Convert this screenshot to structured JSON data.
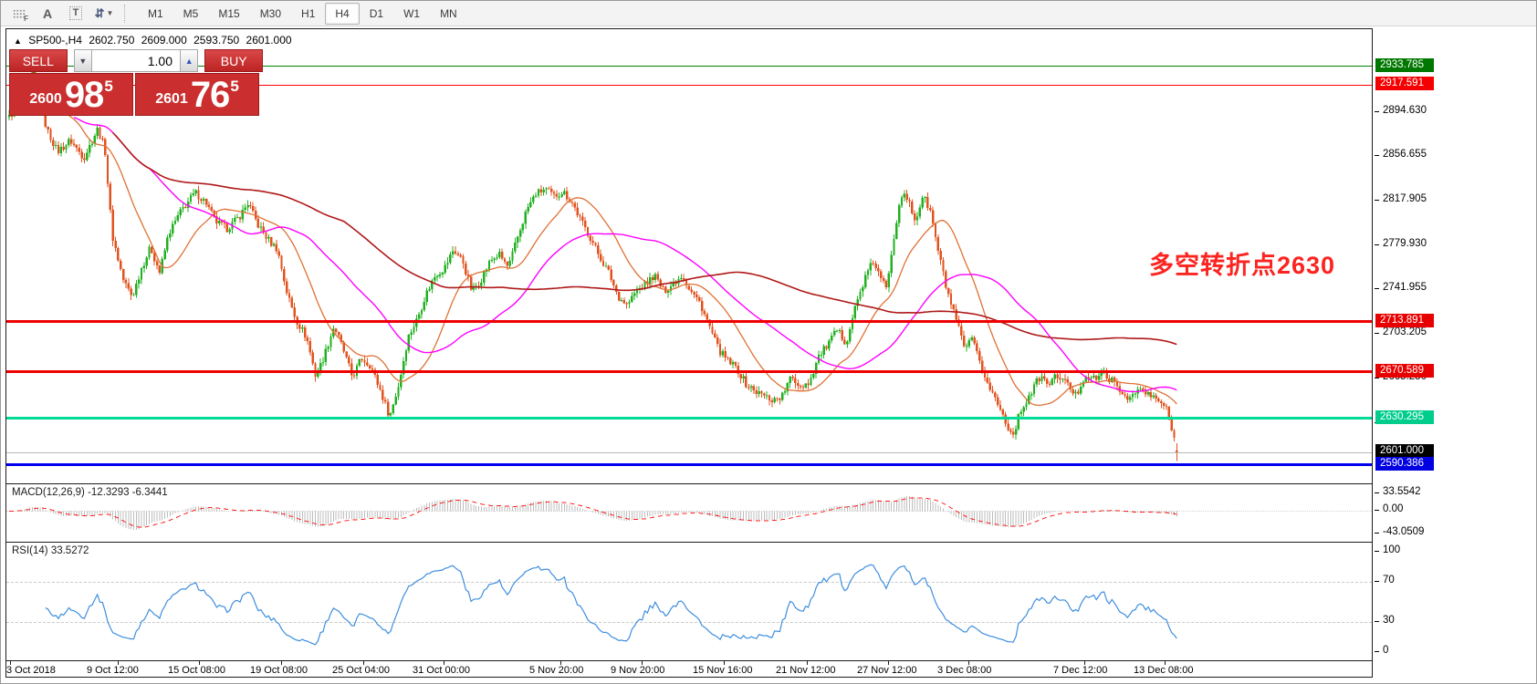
{
  "toolbar": {
    "icons": [
      "dotted-grid-f",
      "text-label-a",
      "text-box-t",
      "arrow-objects"
    ],
    "timeframes": [
      {
        "label": "M1",
        "active": false
      },
      {
        "label": "M5",
        "active": false
      },
      {
        "label": "M15",
        "active": false
      },
      {
        "label": "M30",
        "active": false
      },
      {
        "label": "H1",
        "active": false
      },
      {
        "label": "H4",
        "active": true
      },
      {
        "label": "D1",
        "active": false
      },
      {
        "label": "W1",
        "active": false
      },
      {
        "label": "MN",
        "active": false
      }
    ]
  },
  "header": {
    "trend_arrow": "▲",
    "symbol": "SP500-,H4",
    "open": "2602.750",
    "high": "2609.000",
    "low": "2593.750",
    "close": "2601.000"
  },
  "trade_panel": {
    "sell_label": "SELL",
    "buy_label": "BUY",
    "volume": "1.00",
    "sell": {
      "prefix": "2600",
      "big": "98",
      "sup": "5"
    },
    "buy": {
      "prefix": "2601",
      "big": "76",
      "sup": "5"
    }
  },
  "annotation": {
    "text": "多空转折点2630",
    "color": "#fb2420"
  },
  "levels": [
    {
      "value": "2933.785",
      "line_color": "#008000",
      "badge_bg": "#007800",
      "thickness": 1
    },
    {
      "value": "2917.591",
      "line_color": "#ff0000",
      "badge_bg": "#f40000",
      "thickness": 1
    },
    {
      "value": "2713.891",
      "line_color": "#ee0000",
      "badge_bg": "#e80000",
      "thickness": 3
    },
    {
      "value": "2670.589",
      "line_color": "#ee0000",
      "badge_bg": "#e80000",
      "thickness": 3
    },
    {
      "value": "2630.295",
      "line_color": "#00db95",
      "badge_bg": "#00cd8c",
      "thickness": 3
    },
    {
      "value": "2601.000",
      "line_color": "#b8b8b8",
      "badge_bg": "#000000",
      "thickness": 1
    },
    {
      "value": "2590.386",
      "line_color": "#0000ee",
      "badge_bg": "#0000e0",
      "thickness": 3
    }
  ],
  "price_axis_ticks": [
    "2894.630",
    "2856.655",
    "2817.905",
    "2779.930",
    "2741.955",
    "2703.205",
    "2665.230",
    "2626.480"
  ],
  "macd_panel": {
    "label": "MACD(12,26,9) -12.3293 -6.3441",
    "ticks": [
      "33.5542",
      "0.00",
      "-43.0509"
    ]
  },
  "rsi_panel": {
    "label": "RSI(14) 33.5272",
    "ticks": [
      "100",
      "70",
      "30",
      "0"
    ]
  },
  "time_axis": [
    "3 Oct 2018",
    "9 Oct 12:00",
    "15 Oct 08:00",
    "19 Oct 08:00",
    "25 Oct 04:00",
    "31 Oct 00:00",
    "5 Nov 20:00",
    "9 Nov 20:00",
    "15 Nov 16:00",
    "21 Nov 12:00",
    "27 Nov 12:00",
    "3 Dec 08:00",
    "7 Dec 12:00",
    "13 Dec 08:00"
  ],
  "chart_data": {
    "type": "candlestick",
    "symbol": "SP500-",
    "timeframe": "H4",
    "current_bar": {
      "open": 2602.75,
      "high": 2609.0,
      "low": 2593.75,
      "close": 2601.0
    },
    "bid": 2600.985,
    "ask": 2601.765,
    "visible_price_range": [
      2570,
      2950
    ],
    "price_ticks": [
      2894.63,
      2856.655,
      2817.905,
      2779.93,
      2741.955,
      2703.205,
      2665.23,
      2626.48
    ],
    "horizontal_levels": [
      2933.785,
      2917.591,
      2713.891,
      2670.589,
      2630.295,
      2601.0,
      2590.386
    ],
    "annotation_level": 2630,
    "x_axis_labels": [
      "3 Oct 2018",
      "9 Oct 12:00",
      "15 Oct 08:00",
      "19 Oct 08:00",
      "25 Oct 04:00",
      "31 Oct 00:00",
      "5 Nov 20:00",
      "9 Nov 20:00",
      "15 Nov 16:00",
      "21 Nov 12:00",
      "27 Nov 12:00",
      "3 Dec 08:00",
      "7 Dec 12:00",
      "13 Dec 08:00"
    ],
    "moving_averages": [
      {
        "name": "fast",
        "period": 21,
        "color": "#df7134"
      },
      {
        "name": "medium",
        "period": 55,
        "color": "#ff00ff"
      },
      {
        "name": "slow",
        "period": 130,
        "color": "#b01818"
      }
    ],
    "macd": {
      "params": [
        12,
        26,
        9
      ],
      "current_macd": -12.3293,
      "current_signal": -6.3441,
      "axis_range": [
        -43.0509,
        33.5542
      ],
      "histogram_color": "#bdbdbd",
      "signal_color": "#ff2222"
    },
    "rsi": {
      "period": 14,
      "current": 33.5272,
      "levels": [
        70,
        30
      ],
      "range": [
        0,
        100
      ],
      "color": "#3e8ede"
    },
    "price_path_anchors": [
      [
        3,
        2890
      ],
      [
        14,
        2902
      ],
      [
        30,
        2928
      ],
      [
        44,
        2880
      ],
      [
        56,
        2860
      ],
      [
        70,
        2870
      ],
      [
        85,
        2855
      ],
      [
        100,
        2880
      ],
      [
        108,
        2862
      ],
      [
        116,
        2788
      ],
      [
        128,
        2750
      ],
      [
        138,
        2735
      ],
      [
        148,
        2760
      ],
      [
        158,
        2778
      ],
      [
        168,
        2756
      ],
      [
        178,
        2790
      ],
      [
        192,
        2810
      ],
      [
        207,
        2825
      ],
      [
        219,
        2816
      ],
      [
        229,
        2800
      ],
      [
        242,
        2794
      ],
      [
        255,
        2804
      ],
      [
        265,
        2816
      ],
      [
        275,
        2798
      ],
      [
        287,
        2784
      ],
      [
        297,
        2776
      ],
      [
        307,
        2740
      ],
      [
        317,
        2716
      ],
      [
        329,
        2700
      ],
      [
        339,
        2666
      ],
      [
        349,
        2686
      ],
      [
        359,
        2710
      ],
      [
        369,
        2690
      ],
      [
        379,
        2666
      ],
      [
        389,
        2682
      ],
      [
        399,
        2676
      ],
      [
        409,
        2656
      ],
      [
        420,
        2632
      ],
      [
        430,
        2660
      ],
      [
        440,
        2700
      ],
      [
        450,
        2716
      ],
      [
        460,
        2738
      ],
      [
        470,
        2754
      ],
      [
        480,
        2760
      ],
      [
        490,
        2776
      ],
      [
        500,
        2766
      ],
      [
        510,
        2740
      ],
      [
        520,
        2750
      ],
      [
        530,
        2766
      ],
      [
        540,
        2772
      ],
      [
        550,
        2760
      ],
      [
        560,
        2786
      ],
      [
        570,
        2810
      ],
      [
        580,
        2824
      ],
      [
        590,
        2828
      ],
      [
        600,
        2822
      ],
      [
        610,
        2826
      ],
      [
        620,
        2816
      ],
      [
        630,
        2800
      ],
      [
        640,
        2786
      ],
      [
        650,
        2770
      ],
      [
        660,
        2756
      ],
      [
        670,
        2736
      ],
      [
        680,
        2728
      ],
      [
        690,
        2740
      ],
      [
        700,
        2746
      ],
      [
        710,
        2754
      ],
      [
        720,
        2740
      ],
      [
        730,
        2746
      ],
      [
        740,
        2754
      ],
      [
        750,
        2740
      ],
      [
        760,
        2730
      ],
      [
        770,
        2710
      ],
      [
        780,
        2690
      ],
      [
        790,
        2680
      ],
      [
        800,
        2674
      ],
      [
        810,
        2660
      ],
      [
        820,
        2654
      ],
      [
        830,
        2650
      ],
      [
        840,
        2646
      ],
      [
        850,
        2650
      ],
      [
        860,
        2666
      ],
      [
        870,
        2658
      ],
      [
        880,
        2662
      ],
      [
        890,
        2684
      ],
      [
        900,
        2694
      ],
      [
        910,
        2706
      ],
      [
        920,
        2696
      ],
      [
        930,
        2726
      ],
      [
        940,
        2750
      ],
      [
        950,
        2766
      ],
      [
        956,
        2754
      ],
      [
        964,
        2742
      ],
      [
        972,
        2786
      ],
      [
        980,
        2824
      ],
      [
        988,
        2818
      ],
      [
        996,
        2800
      ],
      [
        1004,
        2822
      ],
      [
        1012,
        2810
      ],
      [
        1020,
        2778
      ],
      [
        1030,
        2742
      ],
      [
        1040,
        2716
      ],
      [
        1050,
        2690
      ],
      [
        1058,
        2698
      ],
      [
        1066,
        2680
      ],
      [
        1075,
        2660
      ],
      [
        1085,
        2645
      ],
      [
        1095,
        2628
      ],
      [
        1102,
        2615
      ],
      [
        1112,
        2638
      ],
      [
        1122,
        2652
      ],
      [
        1132,
        2666
      ],
      [
        1142,
        2660
      ],
      [
        1152,
        2668
      ],
      [
        1162,
        2660
      ],
      [
        1172,
        2650
      ],
      [
        1182,
        2668
      ],
      [
        1192,
        2664
      ],
      [
        1202,
        2670
      ],
      [
        1212,
        2662
      ],
      [
        1222,
        2652
      ],
      [
        1232,
        2648
      ],
      [
        1242,
        2656
      ],
      [
        1252,
        2650
      ],
      [
        1262,
        2646
      ],
      [
        1270,
        2640
      ],
      [
        1276,
        2625
      ],
      [
        1283,
        2601
      ]
    ],
    "candle_up_color": "#20b020",
    "candle_down_color": "#e2521e"
  }
}
